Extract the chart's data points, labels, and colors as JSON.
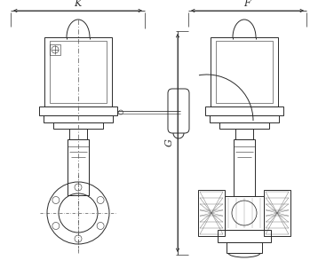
{
  "bg_color": "#ffffff",
  "lc": "#2a2a2a",
  "lw": 0.7,
  "lw_thin": 0.4,
  "lw_med": 0.55,
  "figsize": [
    3.67,
    3.11
  ],
  "dpi": 100,
  "label_K": "K",
  "label_F": "F",
  "label_G": "G"
}
